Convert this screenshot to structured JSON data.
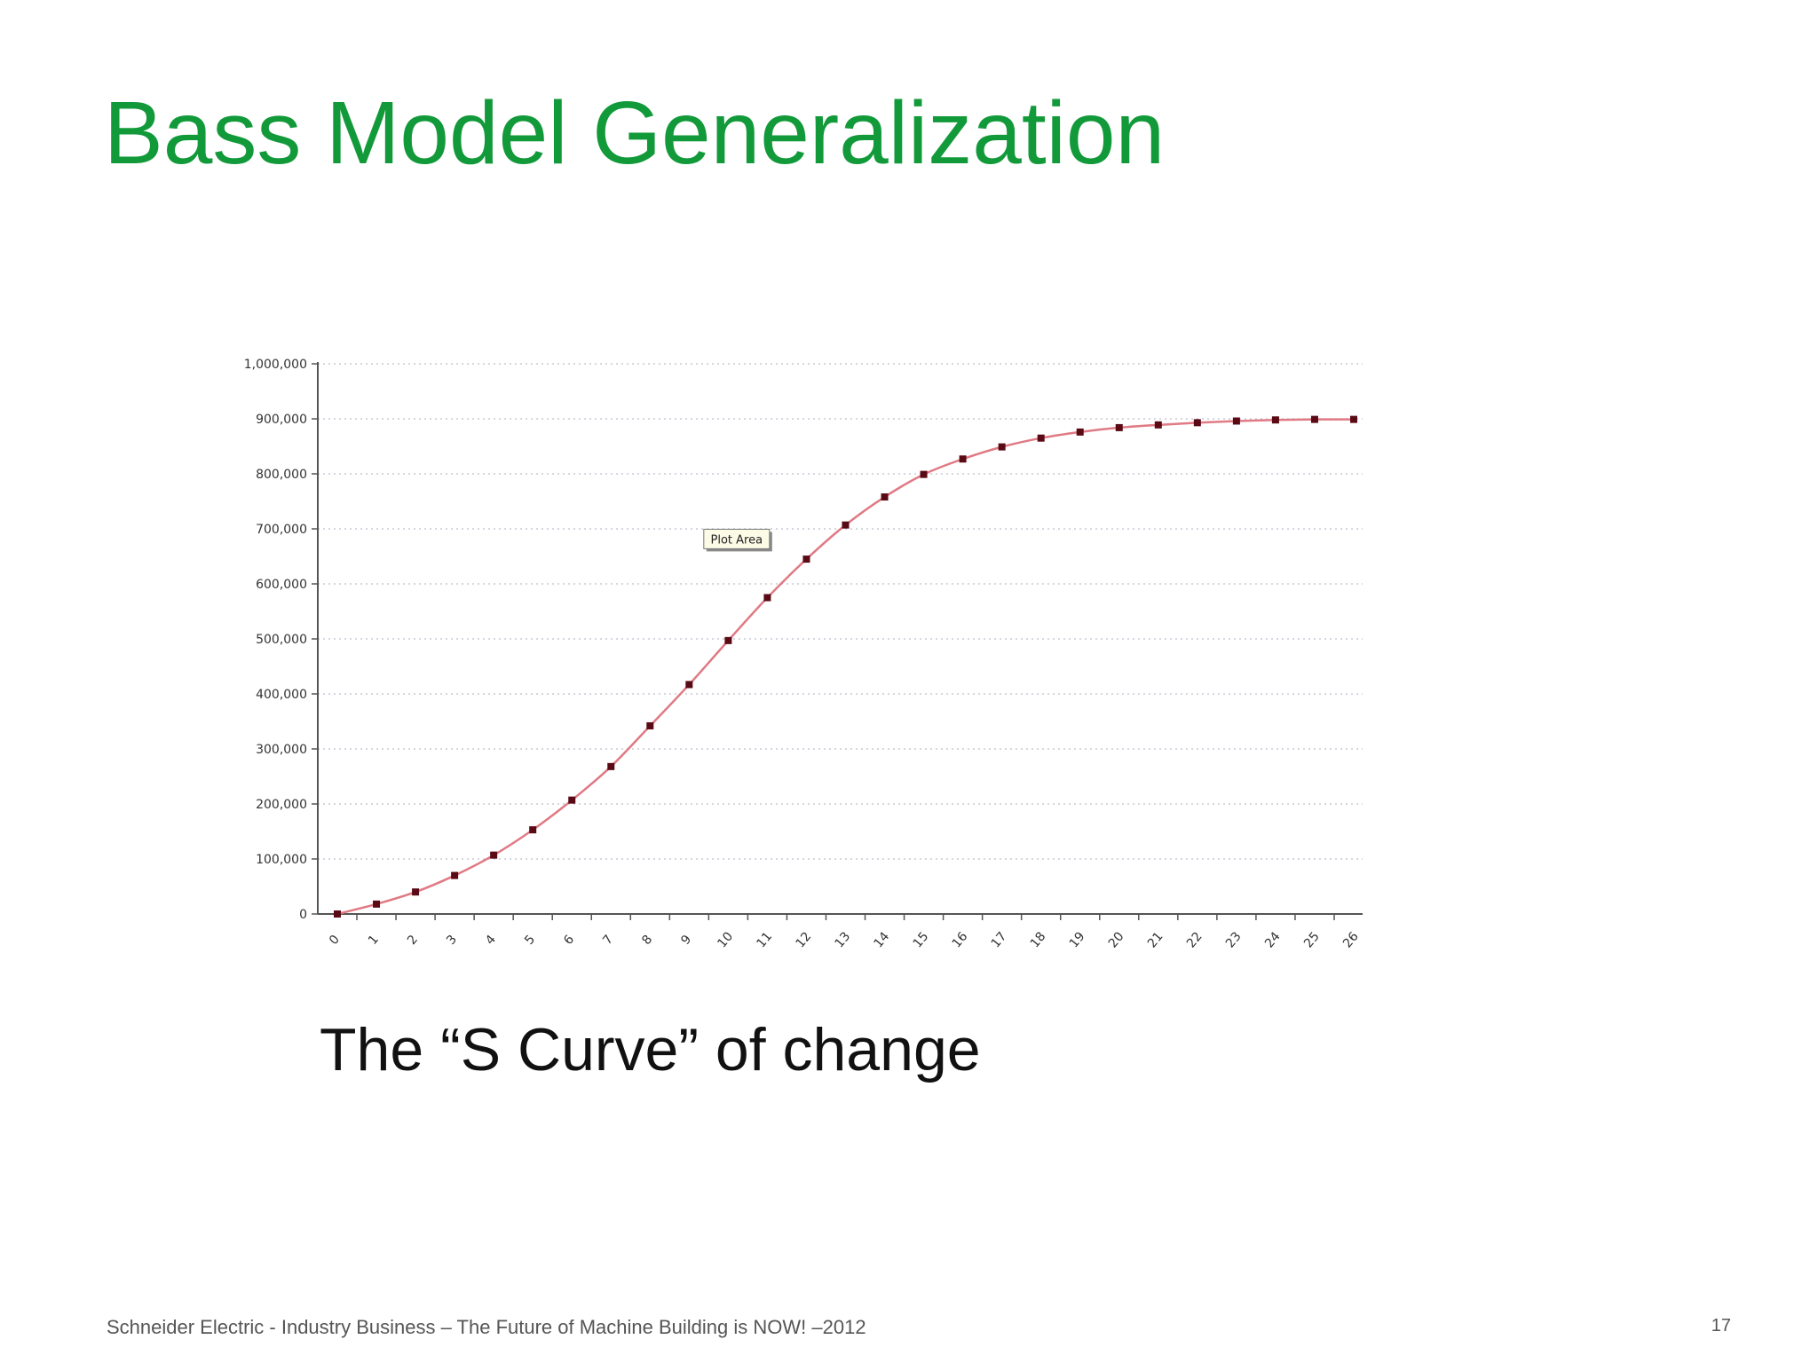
{
  "slide": {
    "title": "Bass Model Generalization",
    "caption": "The “S Curve” of change",
    "footer": "Schneider Electric - Industry Business – The Future of Machine Building is NOW! –2012",
    "page_number": "17"
  },
  "colors": {
    "title": "#129a3a",
    "curve": "#e07a84",
    "marker": "#5a0a14",
    "grid": "#c8c8d6",
    "axis": "#555555"
  },
  "chart_data": {
    "type": "line",
    "title": "",
    "xlabel": "",
    "ylabel": "",
    "x": [
      0,
      1,
      2,
      3,
      4,
      5,
      6,
      7,
      8,
      9,
      10,
      11,
      12,
      13,
      14,
      15,
      16,
      17,
      18,
      19,
      20,
      21,
      22,
      23,
      24,
      25,
      26
    ],
    "x_tick_labels": [
      "0",
      "1",
      "2",
      "3",
      "4",
      "5",
      "6",
      "7",
      "8",
      "9",
      "10",
      "11",
      "12",
      "13",
      "14",
      "15",
      "16",
      "17",
      "18",
      "19",
      "20",
      "21",
      "22",
      "23",
      "24",
      "25",
      "26"
    ],
    "y": [
      0,
      18000,
      40000,
      70000,
      107000,
      153000,
      207000,
      268000,
      342000,
      417000,
      497000,
      575000,
      645000,
      707000,
      758000,
      799000,
      827000,
      849000,
      865000,
      876000,
      884000,
      889000,
      893000,
      896000,
      898000,
      899000,
      899000
    ],
    "ylim": [
      0,
      1000000
    ],
    "y_ticks": [
      0,
      100000,
      200000,
      300000,
      400000,
      500000,
      600000,
      700000,
      800000,
      900000,
      1000000
    ],
    "y_tick_labels": [
      "0",
      "100,000",
      "200,000",
      "300,000",
      "400,000",
      "500,000",
      "600,000",
      "700,000",
      "800,000",
      "900,000",
      "1,000,000"
    ],
    "grid": true,
    "legend": "none",
    "tooltip": {
      "text": "Plot Area",
      "x": 11.1,
      "y": 680000
    }
  }
}
